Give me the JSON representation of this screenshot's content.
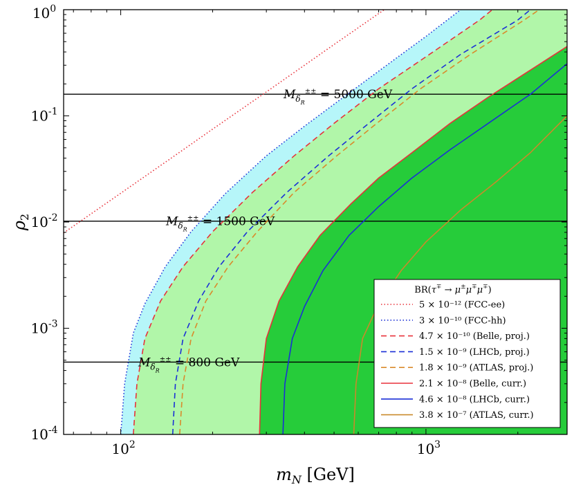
{
  "chart_data": {
    "type": "line",
    "xscale": "log",
    "yscale": "log",
    "xlim": [
      65,
      2900
    ],
    "ylim": [
      0.0001,
      1
    ],
    "xlabel": "m_N [GeV]",
    "ylabel": "ρ₂",
    "xticks": [
      {
        "value": 100,
        "base": "10",
        "exp": "2"
      },
      {
        "value": 1000,
        "base": "10",
        "exp": "3"
      }
    ],
    "yticks": [
      {
        "value": 0.0001,
        "base": "10",
        "exp": "-4"
      },
      {
        "value": 0.001,
        "base": "10",
        "exp": "-3"
      },
      {
        "value": 0.01,
        "base": "10",
        "exp": "-2"
      },
      {
        "value": 0.1,
        "base": "10",
        "exp": "-1"
      },
      {
        "value": 1,
        "base": "10",
        "exp": "0"
      }
    ],
    "legend": {
      "title": "BR(τ∓ → μ±μ∓μ∓)",
      "placement": "lower-right"
    },
    "series": [
      {
        "name": "5 × 10⁻¹² (FCC-ee)",
        "BR": 5e-12,
        "color": "#e8313a",
        "style": "dotted",
        "fill": null,
        "points": [
          [
            65,
            0.0079
          ],
          [
            100,
            0.0187
          ],
          [
            150,
            0.042
          ],
          [
            200,
            0.075
          ],
          [
            300,
            0.168
          ],
          [
            400,
            0.3
          ],
          [
            500,
            0.47
          ],
          [
            700,
            0.92
          ],
          [
            730,
            1.0
          ]
        ]
      },
      {
        "name": "3 × 10⁻¹⁰ (FCC-hh)",
        "BR": 3e-10,
        "color": "#1a2fd6",
        "style": "dotted",
        "fill": "#b6f6f9",
        "points": [
          [
            100,
            0.0001
          ],
          [
            103,
            0.0003
          ],
          [
            110,
            0.0009
          ],
          [
            120,
            0.0017
          ],
          [
            140,
            0.0038
          ],
          [
            170,
            0.0081
          ],
          [
            220,
            0.0185
          ],
          [
            300,
            0.042
          ],
          [
            400,
            0.08
          ],
          [
            600,
            0.19
          ],
          [
            800,
            0.35
          ],
          [
            1000,
            0.56
          ],
          [
            1300,
            1.0
          ]
        ]
      },
      {
        "name": "4.7 × 10⁻¹⁰ (Belle, proj.)",
        "BR": 4.7e-10,
        "color": "#e8313a",
        "style": "dashed",
        "fill": "#b1f6a9",
        "points": [
          [
            110,
            0.0001
          ],
          [
            113,
            0.0003
          ],
          [
            120,
            0.0008
          ],
          [
            135,
            0.0018
          ],
          [
            160,
            0.0038
          ],
          [
            200,
            0.0081
          ],
          [
            270,
            0.019
          ],
          [
            370,
            0.042
          ],
          [
            500,
            0.085
          ],
          [
            700,
            0.18
          ],
          [
            1000,
            0.36
          ],
          [
            1500,
            0.8
          ],
          [
            1650,
            1.0
          ]
        ]
      },
      {
        "name": "1.5 × 10⁻⁹ (LHCb, proj.)",
        "BR": 1.5e-09,
        "color": "#1a2fd6",
        "style": "dashed",
        "fill": null,
        "points": [
          [
            148,
            0.0001
          ],
          [
            151,
            0.0003
          ],
          [
            160,
            0.0008
          ],
          [
            180,
            0.0018
          ],
          [
            210,
            0.0038
          ],
          [
            260,
            0.0081
          ],
          [
            350,
            0.019
          ],
          [
            480,
            0.042
          ],
          [
            650,
            0.085
          ],
          [
            900,
            0.18
          ],
          [
            1300,
            0.38
          ],
          [
            2000,
            0.8
          ],
          [
            2200,
            1.0
          ]
        ]
      },
      {
        "name": "1.8 × 10⁻⁹ (ATLAS, proj.)",
        "BR": 1.8e-09,
        "color": "#d98a2b",
        "style": "dashed",
        "fill": null,
        "points": [
          [
            156,
            0.0001
          ],
          [
            160,
            0.0003
          ],
          [
            170,
            0.0008
          ],
          [
            190,
            0.0018
          ],
          [
            225,
            0.0038
          ],
          [
            280,
            0.0081
          ],
          [
            370,
            0.019
          ],
          [
            510,
            0.042
          ],
          [
            690,
            0.085
          ],
          [
            960,
            0.18
          ],
          [
            1400,
            0.38
          ],
          [
            2100,
            0.8
          ],
          [
            2350,
            1.0
          ]
        ]
      },
      {
        "name": "2.1 × 10⁻⁸ (Belle, curr.)",
        "BR": 2.1e-08,
        "color": "#e8313a",
        "style": "solid",
        "fill": "#26cc3a",
        "points": [
          [
            285,
            0.0001
          ],
          [
            288,
            0.0003
          ],
          [
            300,
            0.0008
          ],
          [
            330,
            0.0018
          ],
          [
            380,
            0.0038
          ],
          [
            450,
            0.0075
          ],
          [
            570,
            0.015
          ],
          [
            700,
            0.026
          ],
          [
            900,
            0.045
          ],
          [
            1200,
            0.085
          ],
          [
            1600,
            0.15
          ],
          [
            2200,
            0.27
          ],
          [
            2900,
            0.45
          ]
        ]
      },
      {
        "name": "4.6 × 10⁻⁸ (LHCb, curr.)",
        "BR": 4.6e-08,
        "color": "#1a2fd6",
        "style": "solid",
        "fill": null,
        "points": [
          [
            340,
            0.0001
          ],
          [
            345,
            0.0003
          ],
          [
            365,
            0.0008
          ],
          [
            400,
            0.0016
          ],
          [
            460,
            0.0035
          ],
          [
            560,
            0.0075
          ],
          [
            700,
            0.014
          ],
          [
            900,
            0.026
          ],
          [
            1200,
            0.048
          ],
          [
            1600,
            0.085
          ],
          [
            2200,
            0.16
          ],
          [
            2900,
            0.31
          ]
        ]
      },
      {
        "name": "3.8 × 10⁻⁷ (ATLAS, curr.)",
        "BR": 3.8e-07,
        "color": "#c98a2b",
        "style": "solid",
        "fill": null,
        "points": [
          [
            580,
            0.0001
          ],
          [
            590,
            0.0003
          ],
          [
            620,
            0.0008
          ],
          [
            700,
            0.0017
          ],
          [
            830,
            0.0035
          ],
          [
            1000,
            0.0065
          ],
          [
            1300,
            0.013
          ],
          [
            1700,
            0.024
          ],
          [
            2200,
            0.045
          ],
          [
            2900,
            0.1
          ]
        ]
      }
    ],
    "reference_lines": [
      {
        "y": 0.16,
        "label_pre": "M",
        "label_sub": "δ",
        "label_subsub": "R",
        "label_sup": "±±",
        "label_post": " = 5000 GeV",
        "label_x": 410
      },
      {
        "y": 0.0102,
        "label_pre": "M",
        "label_sub": "δ",
        "label_subsub": "R",
        "label_sup": "±±",
        "label_post": " = 1500 GeV",
        "label_x": 240
      },
      {
        "y": 0.00048,
        "label_pre": "M",
        "label_sub": "δ",
        "label_subsub": "R",
        "label_sup": "±±",
        "label_post": " = 800 GeV",
        "label_x": 200
      }
    ]
  }
}
